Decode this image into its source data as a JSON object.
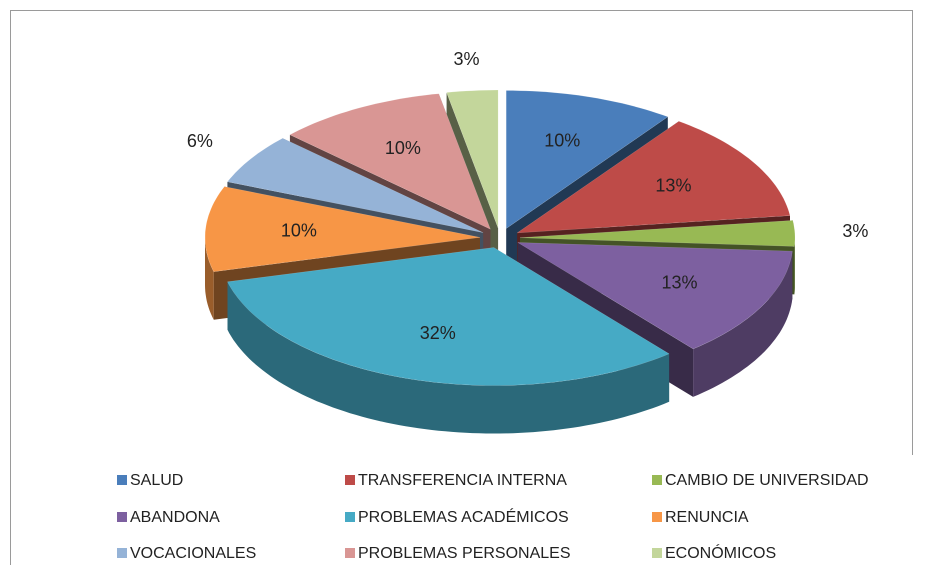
{
  "chart_data": {
    "type": "pie3d",
    "categories": [
      "SALUD",
      "TRANSFERENCIA INTERNA",
      "CAMBIO DE UNIVERSIDAD",
      "ABANDONA",
      "PROBLEMAS ACADÉMICOS",
      "RENUNCIA",
      "VOCACIONALES",
      "PROBLEMAS PERSONALES",
      "ECONÓMICOS"
    ],
    "values": [
      10,
      13,
      3,
      13,
      32,
      10,
      6,
      10,
      3
    ],
    "value_labels": [
      "10%",
      "13%",
      "3%",
      "13%",
      "32%",
      "10%",
      "6%",
      "10%",
      "3%"
    ],
    "colors": [
      "#4a7ebb",
      "#be4b48",
      "#98b954",
      "#7d60a0",
      "#46aac5",
      "#f79646",
      "#95b3d7",
      "#d99694",
      "#c3d69b"
    ],
    "legend": "bottom"
  }
}
